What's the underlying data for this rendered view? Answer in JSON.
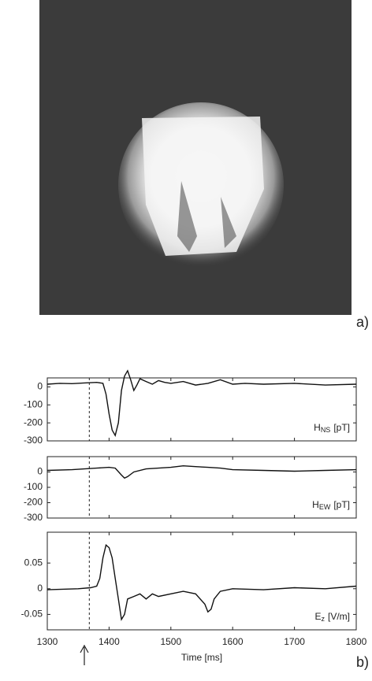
{
  "figure_labels": [
    "a)",
    "b)"
  ],
  "chart_data": [
    {
      "type": "line",
      "label_main": "H",
      "label_sub": "NS",
      "label_unit": "[pT]",
      "color": "#111111",
      "ylim": [
        -300,
        50
      ],
      "yticks": [
        -300,
        -200,
        -100,
        0
      ],
      "xlim": [
        1300,
        1800
      ],
      "xticks": [
        1300,
        1400,
        1500,
        1600,
        1700,
        1800
      ],
      "vline": 1368,
      "x": [
        1300,
        1320,
        1340,
        1360,
        1380,
        1390,
        1395,
        1400,
        1405,
        1410,
        1415,
        1420,
        1425,
        1430,
        1435,
        1440,
        1445,
        1450,
        1460,
        1470,
        1480,
        1490,
        1500,
        1520,
        1540,
        1560,
        1580,
        1600,
        1620,
        1650,
        1700,
        1750,
        1800
      ],
      "values": [
        15,
        20,
        18,
        22,
        25,
        20,
        -40,
        -150,
        -240,
        -270,
        -200,
        -20,
        60,
        90,
        40,
        -20,
        10,
        45,
        30,
        15,
        35,
        25,
        20,
        30,
        10,
        20,
        40,
        15,
        20,
        15,
        20,
        10,
        15
      ]
    },
    {
      "type": "line",
      "label_main": "H",
      "label_sub": "EW",
      "label_unit": "[pT]",
      "color": "#111111",
      "ylim": [
        -300,
        100
      ],
      "yticks": [
        -300,
        -200,
        -100,
        0
      ],
      "xlim": [
        1300,
        1800
      ],
      "xticks": [
        1300,
        1400,
        1500,
        1600,
        1700,
        1800
      ],
      "vline": 1368,
      "x": [
        1300,
        1340,
        1380,
        1400,
        1410,
        1420,
        1425,
        1430,
        1440,
        1460,
        1480,
        1500,
        1520,
        1540,
        1560,
        1580,
        1600,
        1650,
        1700,
        1750,
        1800
      ],
      "values": [
        10,
        15,
        25,
        30,
        25,
        -20,
        -40,
        -30,
        0,
        20,
        25,
        30,
        40,
        35,
        30,
        25,
        15,
        10,
        5,
        10,
        15
      ]
    },
    {
      "type": "line",
      "label_main": "E",
      "label_sub": "z",
      "label_unit": "[V/m]",
      "color": "#111111",
      "xlabel": "Time [ms]",
      "ylim": [
        -0.08,
        0.11
      ],
      "yticks": [
        -0.05,
        0,
        0.05
      ],
      "xlim": [
        1300,
        1800
      ],
      "xticks": [
        1300,
        1400,
        1500,
        1600,
        1700,
        1800
      ],
      "vline": 1368,
      "x": [
        1300,
        1350,
        1370,
        1380,
        1385,
        1390,
        1395,
        1400,
        1405,
        1410,
        1415,
        1420,
        1425,
        1430,
        1440,
        1450,
        1460,
        1470,
        1480,
        1500,
        1520,
        1540,
        1555,
        1560,
        1565,
        1570,
        1580,
        1600,
        1650,
        1700,
        1750,
        1800
      ],
      "values": [
        -0.002,
        0,
        0.002,
        0.005,
        0.02,
        0.06,
        0.085,
        0.08,
        0.06,
        0.02,
        -0.02,
        -0.06,
        -0.05,
        -0.02,
        -0.015,
        -0.01,
        -0.02,
        -0.01,
        -0.015,
        -0.01,
        -0.005,
        -0.01,
        -0.03,
        -0.045,
        -0.04,
        -0.02,
        -0.005,
        0,
        -0.002,
        0.002,
        0,
        0.005
      ]
    }
  ]
}
